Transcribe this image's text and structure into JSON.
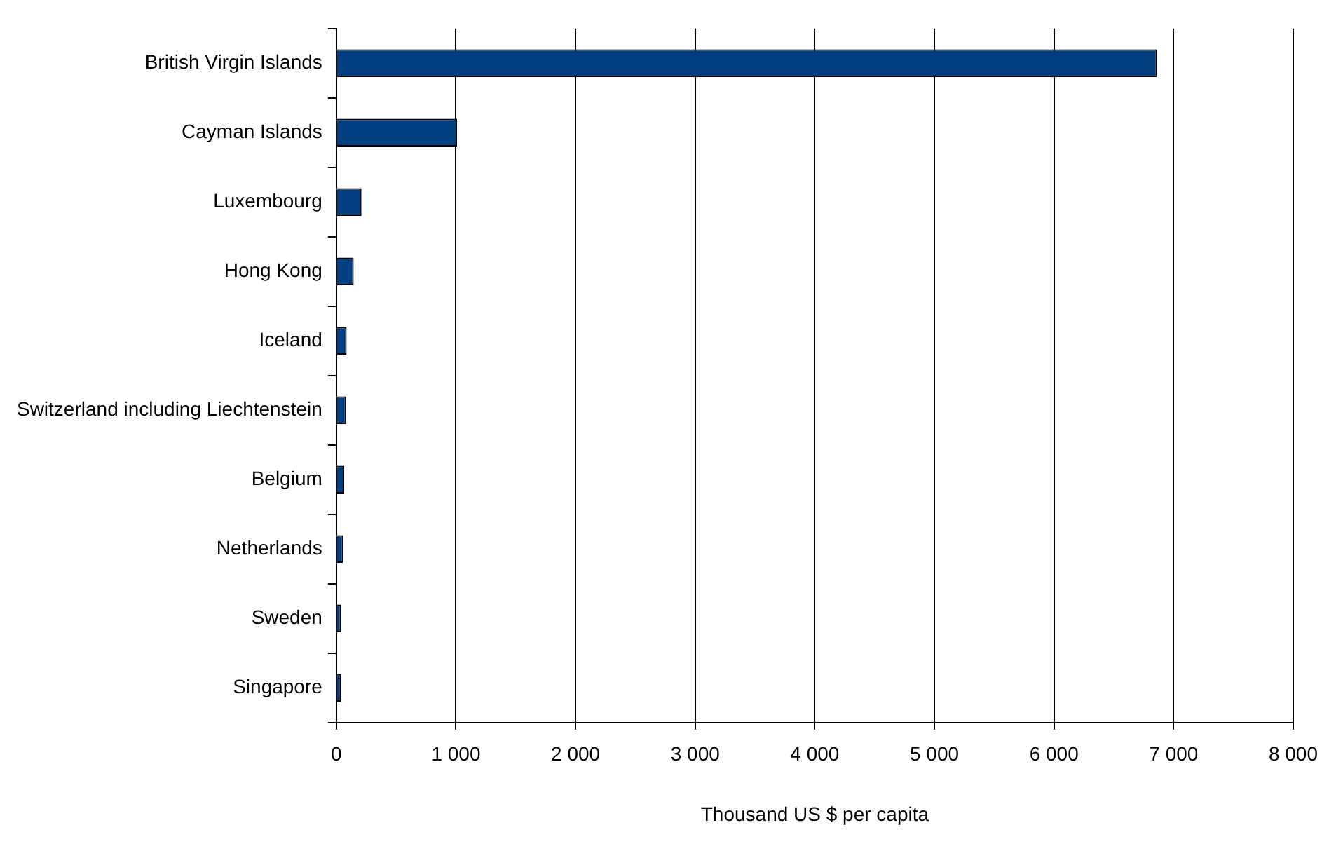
{
  "chart_data": {
    "type": "bar",
    "orientation": "horizontal",
    "xlabel": "Thousand US $ per capita",
    "categories": [
      "British Virgin Islands",
      "Cayman Islands",
      "Luxembourg",
      "Hong Kong",
      "Iceland",
      "Switzerland including Liechtenstein",
      "Belgium",
      "Netherlands",
      "Sweden",
      "Singapore"
    ],
    "values": [
      6860,
      1010,
      210,
      145,
      86,
      82,
      66,
      57,
      40,
      38
    ],
    "color": "#003f7f",
    "xlim": [
      0,
      8000
    ],
    "xticks": [
      0,
      {
        "value": 1000,
        "label": "1 000"
      },
      {
        "value": 2000,
        "label": "2 000"
      },
      {
        "value": 3000,
        "label": "3 000"
      },
      {
        "value": 4000,
        "label": "4 000"
      },
      {
        "value": 5000,
        "label": "5 000"
      },
      {
        "value": 6000,
        "label": "6 000"
      },
      {
        "value": 7000,
        "label": "7 000"
      },
      {
        "value": 8000,
        "label": "8 000"
      }
    ],
    "grid": "x",
    "legend": false
  }
}
